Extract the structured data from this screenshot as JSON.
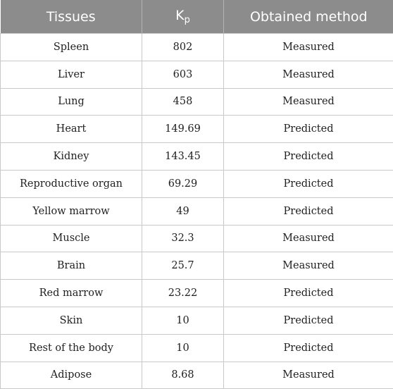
{
  "table": {
    "headers": {
      "tissues": "Tissues",
      "kp_main": "K",
      "kp_sub": "p",
      "method": "Obtained method"
    },
    "rows": [
      {
        "tissue": "Spleen",
        "kp": "802",
        "method": "Measured"
      },
      {
        "tissue": "Liver",
        "kp": "603",
        "method": "Measured"
      },
      {
        "tissue": "Lung",
        "kp": "458",
        "method": "Measured"
      },
      {
        "tissue": "Heart",
        "kp": "149.69",
        "method": "Predicted"
      },
      {
        "tissue": "Kidney",
        "kp": "143.45",
        "method": "Predicted"
      },
      {
        "tissue": "Reproductive organ",
        "kp": "69.29",
        "method": "Predicted"
      },
      {
        "tissue": "Yellow marrow",
        "kp": "49",
        "method": "Predicted"
      },
      {
        "tissue": "Muscle",
        "kp": "32.3",
        "method": "Measured"
      },
      {
        "tissue": "Brain",
        "kp": "25.7",
        "method": "Measured"
      },
      {
        "tissue": "Red marrow",
        "kp": "23.22",
        "method": "Predicted"
      },
      {
        "tissue": "Skin",
        "kp": "10",
        "method": "Predicted"
      },
      {
        "tissue": "Rest of the body",
        "kp": "10",
        "method": "Predicted"
      },
      {
        "tissue": "Adipose",
        "kp": "8.68",
        "method": "Measured"
      }
    ]
  },
  "colors": {
    "header_background": "#8c8c8c",
    "header_text": "#ffffff",
    "grid_line": "#c8c8c8",
    "body_text": "#1f1f1f"
  }
}
